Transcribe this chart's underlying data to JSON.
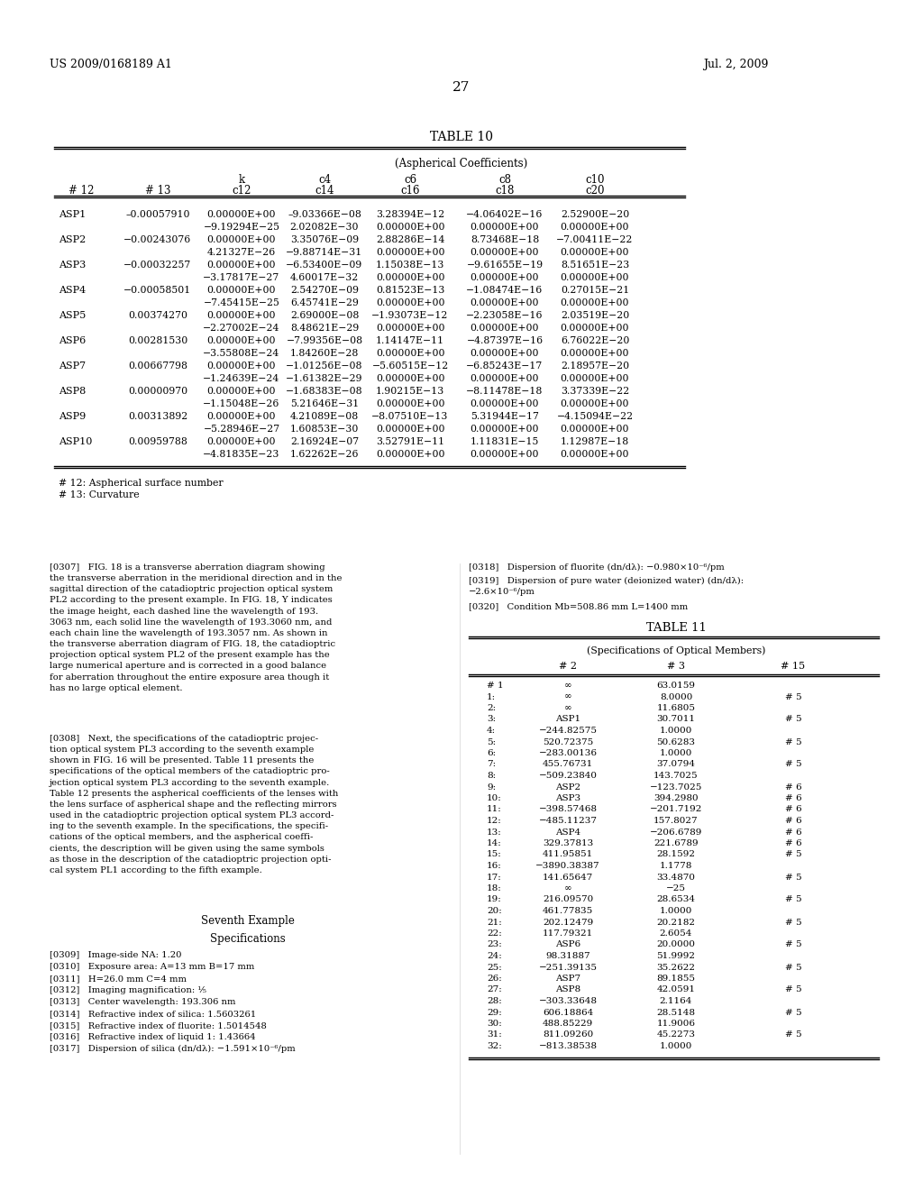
{
  "header_left": "US 2009/0168189 A1",
  "header_right": "Jul. 2, 2009",
  "page_number": "27",
  "table10_title": "TABLE 10",
  "table10_subtitle": "(Aspherical Coefficients)",
  "table10_col_headers": [
    "",
    "",
    "k",
    "c4",
    "c6",
    "c8",
    "c10"
  ],
  "table10_col_headers2": [
    "# 12",
    "# 13",
    "c12",
    "c14",
    "c16",
    "c18",
    "c20"
  ],
  "table10_rows": [
    [
      "ASP1",
      "–0.00057910",
      "0.00000E+00",
      "–9.03366E−08",
      "3.28394E−12",
      "−4.06402E−16",
      "2.52900E−20"
    ],
    [
      "",
      "",
      "−9.19294E−25",
      "2.02082E−30",
      "0.00000E+00",
      "0.00000E+00",
      "0.00000E+00"
    ],
    [
      "ASP2",
      "−0.00243076",
      "0.00000E+00",
      "3.35076E−09",
      "2.88286E−14",
      "8.73468E−18",
      "−7.00411E−22"
    ],
    [
      "",
      "",
      "4.21327E−26",
      "−9.88714E−31",
      "0.00000E+00",
      "0.00000E+00",
      "0.00000E+00"
    ],
    [
      "ASP3",
      "−0.00032257",
      "0.00000E+00",
      "−6.53400E−09",
      "1.15038E−13",
      "−9.61655E−19",
      "8.51651E−23"
    ],
    [
      "",
      "",
      "−3.17817E−27",
      "4.60017E−32",
      "0.00000E+00",
      "0.00000E+00",
      "0.00000E+00"
    ],
    [
      "ASP4",
      "−0.00058501",
      "0.00000E+00",
      "2.54270E−09",
      "0.81523E−13",
      "−1.08474E−16",
      "0.27015E−21"
    ],
    [
      "",
      "",
      "−7.45415E−25",
      "6.45741E−29",
      "0.00000E+00",
      "0.00000E+00",
      "0.00000E+00"
    ],
    [
      "ASP5",
      "0.00374270",
      "0.00000E+00",
      "2.69000E−08",
      "−1.93073E−12",
      "−2.23058E−16",
      "2.03519E−20"
    ],
    [
      "",
      "",
      "−2.27002E−24",
      "8.48621E−29",
      "0.00000E+00",
      "0.00000E+00",
      "0.00000E+00"
    ],
    [
      "ASP6",
      "0.00281530",
      "0.00000E+00",
      "−7.99356E−08",
      "1.14147E−11",
      "−4.87397E−16",
      "6.76022E−20"
    ],
    [
      "",
      "",
      "−3.55808E−24",
      "1.84260E−28",
      "0.00000E+00",
      "0.00000E+00",
      "0.00000E+00"
    ],
    [
      "ASP7",
      "0.00667798",
      "0.00000E+00",
      "−1.01256E−08",
      "−5.60515E−12",
      "−6.85243E−17",
      "2.18957E−20"
    ],
    [
      "",
      "",
      "−1.24639E−24",
      "−1.61382E−29",
      "0.00000E+00",
      "0.00000E+00",
      "0.00000E+00"
    ],
    [
      "ASP8",
      "0.00000970",
      "0.00000E+00",
      "−1.68383E−08",
      "1.90215E−13",
      "−8.11478E−18",
      "3.37339E−22"
    ],
    [
      "",
      "",
      "−1.15048E−26",
      "5.21646E−31",
      "0.00000E+00",
      "0.00000E+00",
      "0.00000E+00"
    ],
    [
      "ASP9",
      "0.00313892",
      "0.00000E+00",
      "4.21089E−08",
      "−8.07510E−13",
      "5.31944E−17",
      "−4.15094E−22"
    ],
    [
      "",
      "",
      "−5.28946E−27",
      "1.60853E−30",
      "0.00000E+00",
      "0.00000E+00",
      "0.00000E+00"
    ],
    [
      "ASP10",
      "0.00959788",
      "0.00000E+00",
      "2.16924E−07",
      "3.52791E−11",
      "1.11831E−15",
      "1.12987E−18"
    ],
    [
      "",
      "",
      "−4.81835E−23",
      "1.62262E−26",
      "0.00000E+00",
      "0.00000E+00",
      "0.00000E+00"
    ]
  ],
  "table10_footnotes": [
    "# 12: Aspherical surface number",
    "# 13: Curvature"
  ],
  "left_paragraphs": [
    "[0307]   FIG. 18 is a transverse aberration diagram showing\nthe transverse aberration in the meridional direction and in the\nsagittal direction of the catadioptric projection optical system\nPL2 according to the present example. In FIG. 18, Y indicates\nthe image height, each dashed line the wavelength of 193.\n3063 nm, each solid line the wavelength of 193.3060 nm, and\neach chain line the wavelength of 193.3057 nm. As shown in\nthe transverse aberration diagram of FIG. 18, the catadioptric\nprojection optical system PL2 of the present example has the\nlarge numerical aperture and is corrected in a good balance\nfor aberration throughout the entire exposure area though it\nhas no large optical element.",
    "[0308]   Next, the specifications of the catadioptric projec-\ntion optical system PL3 according to the seventh example\nshown in FIG. 16 will be presented. Table 11 presents the\nspecifications of the optical members of the catadioptric pro-\njection optical system PL3 according to the seventh example.\nTable 12 presents the aspherical coefficients of the lenses with\nthe lens surface of aspherical shape and the reflecting mirrors\nused in the catadioptric projection optical system PL3 accord-\ning to the seventh example. In the specifications, the specifi-\ncations of the optical members, and the aspherical coeffi-\ncients, the description will be given using the same symbols\nas those in the description of the catadioptric projection opti-\ncal system PL1 according to the fifth example.",
    "Seventh Example",
    "Specifications",
    "[0309]   Image-side NA: 1.20",
    "[0310]   Exposure area: A=13 mm B=17 mm",
    "[0311]   H=26.0 mm C=4 mm",
    "[0312]   Imaging magnification: 1/5",
    "[0313]   Center wavelength: 193.306 nm",
    "[0314]   Refractive index of silica: 1.5603261",
    "[0315]   Refractive index of fluorite: 1.5014548",
    "[0316]   Refractive index of liquid 1: 1.43664",
    "[0317]   Dispersion of silica (dn/dλ): −1.591×10⁻⁶/pm"
  ],
  "right_paragraphs": [
    "[0318]   Dispersion of fluorite (dn/dλ): −0.980×10⁻⁶/pm",
    "[0319]   Dispersion of pure water (deionized water) (dn/dλ):\n−2.6×10⁻⁶/pm",
    "[0320]   Condition Mb=508.86 mm L=1400 mm"
  ],
  "table11_title": "TABLE 11",
  "table11_subtitle": "(Specifications of Optical Members)",
  "table11_col_headers": [
    "",
    "# 2",
    "# 3",
    "# 15"
  ],
  "table11_rows": [
    [
      "# 1",
      "∞",
      "63.0159",
      ""
    ],
    [
      "1:",
      "∞",
      "8.0000",
      "# 5"
    ],
    [
      "2:",
      "∞",
      "11.6805",
      ""
    ],
    [
      "3:",
      "ASP1",
      "30.7011",
      "# 5"
    ],
    [
      "4:",
      "−244.82575",
      "1.0000",
      ""
    ],
    [
      "5:",
      "520.72375",
      "50.6283",
      "# 5"
    ],
    [
      "6:",
      "−283.00136",
      "1.0000",
      ""
    ],
    [
      "7:",
      "455.76731",
      "37.0794",
      "# 5"
    ],
    [
      "8:",
      "−509.23840",
      "143.7025",
      ""
    ],
    [
      "9:",
      "ASP2",
      "−123.7025",
      "# 6"
    ],
    [
      "10:",
      "ASP3",
      "394.2980",
      "# 6"
    ],
    [
      "11:",
      "−398.57468",
      "−201.7192",
      "# 6"
    ],
    [
      "12:",
      "−485.11237",
      "157.8027",
      "# 6"
    ],
    [
      "13:",
      "ASP4",
      "−206.6789",
      "# 6"
    ],
    [
      "14:",
      "329.37813",
      "221.6789",
      "# 6"
    ],
    [
      "15:",
      "411.95851",
      "28.1592",
      "# 5"
    ],
    [
      "16:",
      "−3890.38387",
      "1.1778",
      ""
    ],
    [
      "17:",
      "141.65647",
      "33.4870",
      "# 5"
    ],
    [
      "18:",
      "∞",
      "−25",
      ""
    ],
    [
      "19:",
      "216.09570",
      "28.6534",
      "# 5"
    ],
    [
      "20:",
      "461.77835",
      "1.0000",
      ""
    ],
    [
      "21:",
      "202.12479",
      "20.2182",
      "# 5"
    ],
    [
      "22:",
      "117.79321",
      "2.6054",
      ""
    ],
    [
      "23:",
      "ASP6",
      "20.0000",
      "# 5"
    ],
    [
      "24:",
      "98.31887",
      "51.9992",
      ""
    ],
    [
      "25:",
      "−251.39135",
      "35.2622",
      "# 5"
    ],
    [
      "26:",
      "ASP7",
      "89.1855",
      ""
    ],
    [
      "27:",
      "ASP8",
      "42.0591",
      "# 5"
    ],
    [
      "28:",
      "−303.33648",
      "2.1164",
      ""
    ],
    [
      "29:",
      "606.18864",
      "28.5148",
      "# 5"
    ],
    [
      "30:",
      "488.85229",
      "11.9006",
      ""
    ],
    [
      "31:",
      "811.09260",
      "45.2273",
      "# 5"
    ],
    [
      "32:",
      "−813.38538",
      "1.0000",
      ""
    ]
  ]
}
